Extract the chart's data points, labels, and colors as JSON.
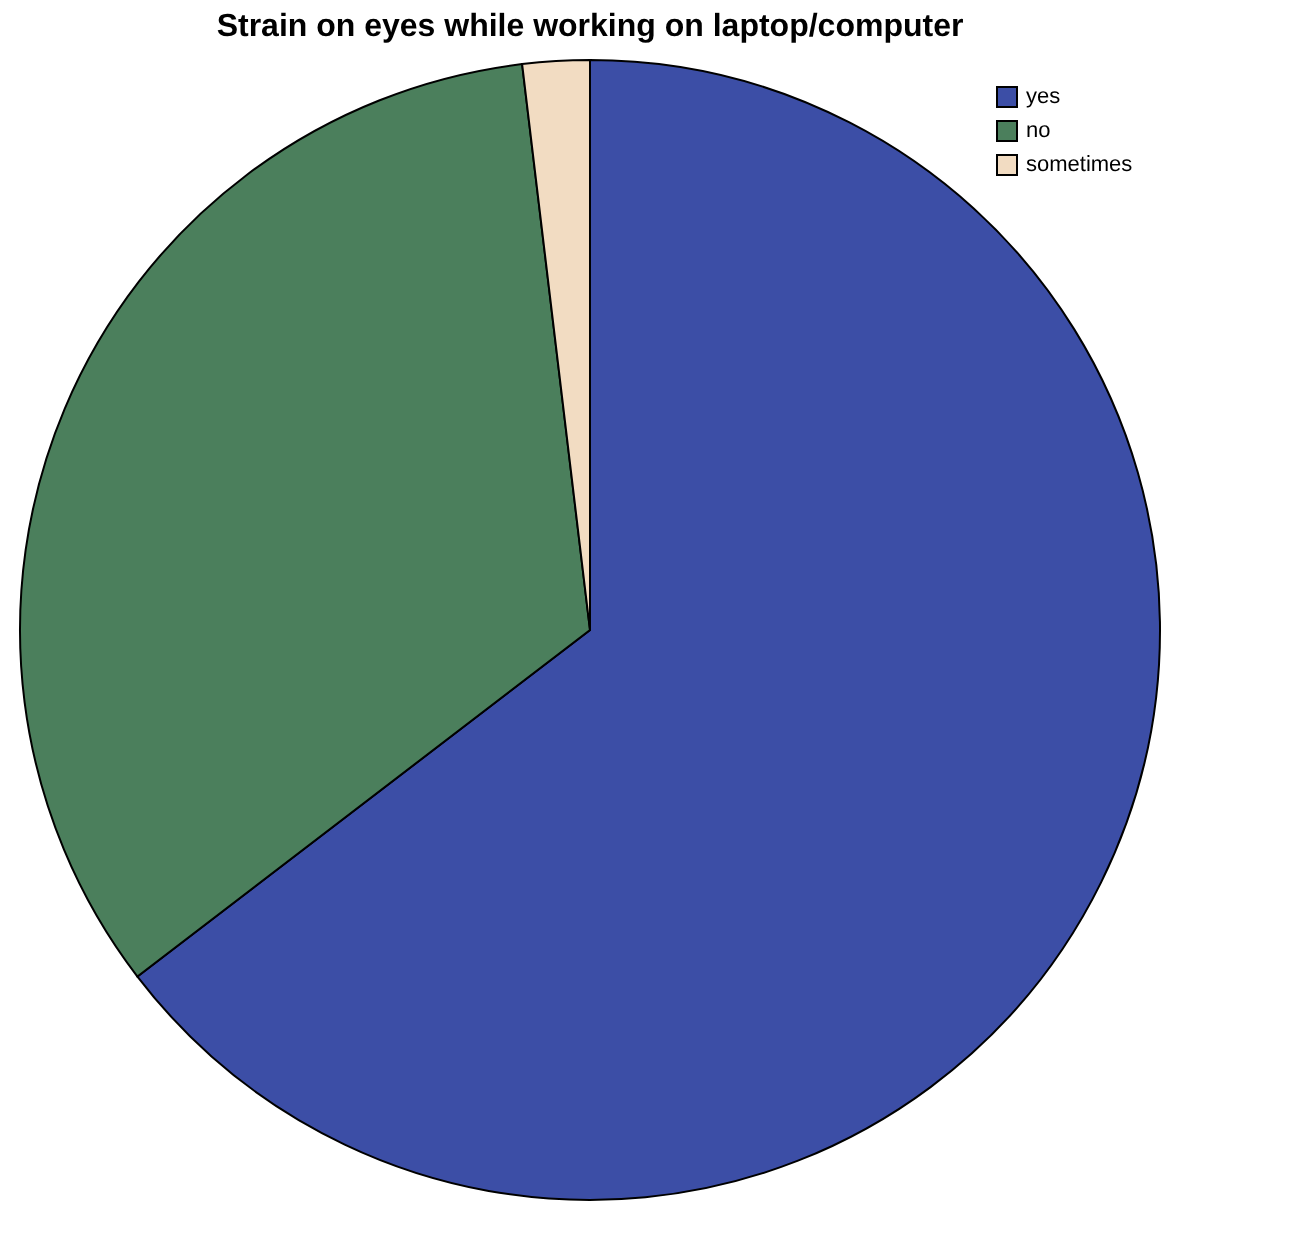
{
  "chart_data": {
    "type": "pie",
    "title": "Strain on eyes while working on laptop/computer",
    "categories": [
      "yes",
      "no",
      "sometimes"
    ],
    "values": [
      64.6,
      33.5,
      1.9
    ],
    "colors": [
      "#3c4ea6",
      "#4b7f5c",
      "#f2dcc2"
    ],
    "legend": "top right"
  }
}
